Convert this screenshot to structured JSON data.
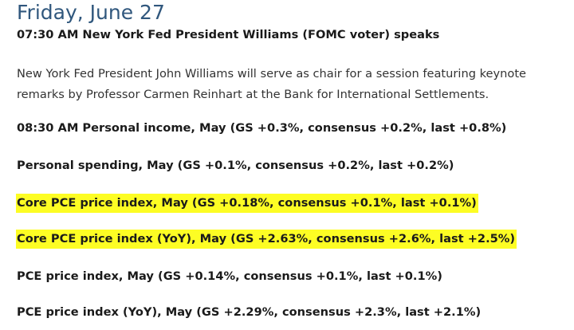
{
  "date_heading": "Friday, June 27",
  "first_event": "07:30 AM New York Fed President Williams (FOMC voter) speaks",
  "description_lines": [
    "New York Fed President John Williams will serve as chair for a session featuring keynote",
    "remarks by Professor Carmen Reinhart at the Bank for International Settlements."
  ],
  "events": [
    {
      "text": "08:30 AM Personal income, May (GS +0.3%, consensus +0.2%, last +0.8%)",
      "highlighted": false
    },
    {
      "text": "Personal spending, May (GS +0.1%, consensus +0.2%, last +0.2%)",
      "highlighted": false
    },
    {
      "text": "Core PCE price index, May (GS +0.18%, consensus +0.1%, last +0.1%)",
      "highlighted": true
    },
    {
      "text": "Core PCE price index (YoY), May (GS +2.63%, consensus +2.6%, last +2.5%)",
      "highlighted": true
    },
    {
      "text": "PCE price index, May (GS +0.14%, consensus +0.1%, last +0.1%)",
      "highlighted": false
    },
    {
      "text": "PCE price index (YoY), May (GS +2.29%, consensus +2.3%, last +2.1%)",
      "highlighted": false
    }
  ],
  "colors": {
    "heading": "#30577d",
    "highlight": "#fdfd24",
    "text": "#1a1a1a"
  }
}
